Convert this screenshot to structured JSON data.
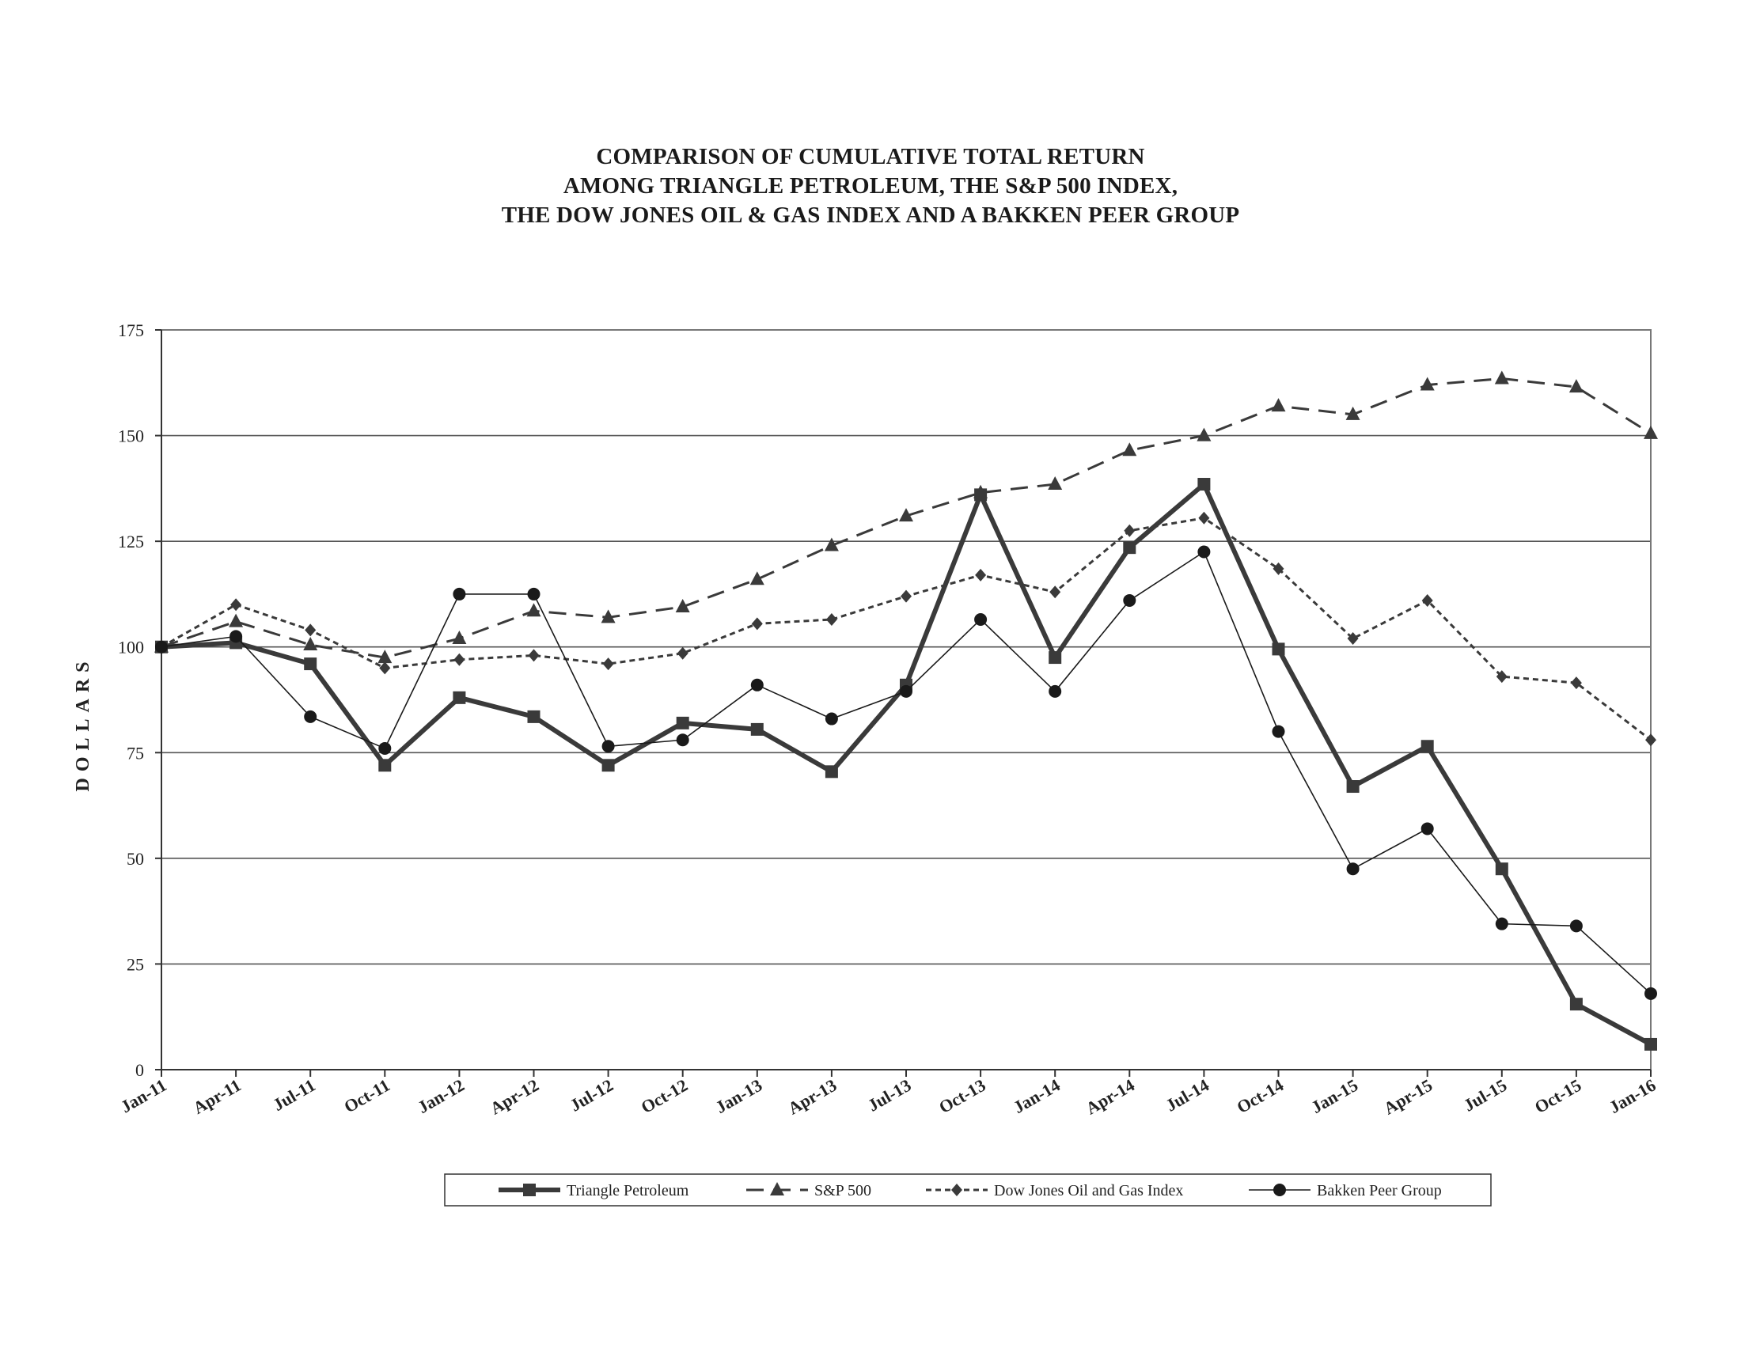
{
  "title_lines": [
    "COMPARISON OF CUMULATIVE TOTAL RETURN",
    "AMONG TRIANGLE PETROLEUM, THE S&P 500 INDEX,",
    "THE DOW JONES OIL & GAS INDEX AND A BAKKEN PEER GROUP"
  ],
  "chart_data": {
    "type": "line",
    "title": "COMPARISON OF CUMULATIVE TOTAL RETURN AMONG TRIANGLE PETROLEUM, THE S&P 500 INDEX, THE DOW JONES OIL & GAS INDEX AND A BAKKEN PEER GROUP",
    "xlabel": "",
    "ylabel": "DOLLARS",
    "ylim": [
      0,
      175
    ],
    "yticks": [
      0,
      25,
      50,
      75,
      100,
      125,
      150,
      175
    ],
    "grid": "horizontal",
    "legend_position": "bottom",
    "categories": [
      "Jan-11",
      "Apr-11",
      "Jul-11",
      "Oct-11",
      "Jan-12",
      "Apr-12",
      "Jul-12",
      "Oct-12",
      "Jan-13",
      "Apr-13",
      "Jul-13",
      "Oct-13",
      "Jan-14",
      "Apr-14",
      "Jul-14",
      "Oct-14",
      "Jan-15",
      "Apr-15",
      "Jul-15",
      "Oct-15",
      "Jan-16"
    ],
    "series": [
      {
        "name": "Triangle Petroleum",
        "marker": "square",
        "dash": "solid-thick",
        "color": "#3a3a3a",
        "values": [
          100,
          101,
          96,
          72,
          88,
          83.5,
          72,
          82,
          80.5,
          70.5,
          91,
          136,
          97.5,
          123.5,
          138.5,
          99.5,
          67,
          76.5,
          47.5,
          15.5,
          6
        ]
      },
      {
        "name": "S&P 500",
        "marker": "triangle",
        "dash": "long-dash",
        "color": "#3a3a3a",
        "values": [
          100,
          106,
          100.5,
          97.5,
          102,
          108.5,
          107,
          109.5,
          116,
          124,
          131,
          136.5,
          138.5,
          146.5,
          150,
          157,
          155,
          162,
          163.5,
          161.5,
          150.5
        ]
      },
      {
        "name": "Dow Jones Oil and Gas Index",
        "marker": "diamond",
        "dash": "short-dash",
        "color": "#3a3a3a",
        "values": [
          100,
          110,
          104,
          95,
          97,
          98,
          96,
          98.5,
          105.5,
          106.5,
          112,
          117,
          113,
          127.5,
          130.5,
          118.5,
          102,
          111,
          93,
          91.5,
          78
        ]
      },
      {
        "name": "Bakken Peer Group",
        "marker": "circle",
        "dash": "solid-thin",
        "color": "#1a1a1a",
        "values": [
          100,
          102.5,
          83.5,
          76,
          112.5,
          112.5,
          76.5,
          78,
          91,
          83,
          89.5,
          106.5,
          89.5,
          111,
          122.5,
          80,
          47.5,
          57,
          34.5,
          34,
          18
        ]
      }
    ]
  }
}
